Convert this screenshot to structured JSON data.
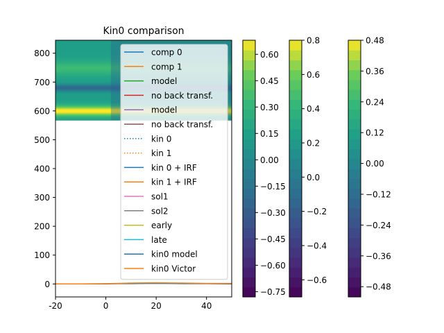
{
  "chart_data": [
    {
      "type": "heatmap+line",
      "title": "Kin0 comparison",
      "xlabel": "",
      "ylabel": "",
      "xlim": [
        -20,
        50
      ],
      "ylim": [
        -45,
        845
      ],
      "xticks": [
        -20,
        0,
        20,
        40
      ],
      "yticks": [
        0,
        100,
        200,
        300,
        400,
        500,
        600,
        700,
        800
      ],
      "heatmap": {
        "x_range": [
          -20,
          50
        ],
        "y_range": [
          568,
          845
        ],
        "colormap": "viridis",
        "bands": [
          {
            "y": 680,
            "width": 12,
            "value": -0.35
          },
          {
            "y": 600,
            "width": 18,
            "value": 0.55
          },
          {
            "y": 748,
            "width": 25,
            "value": 0.2
          }
        ]
      },
      "legend": {
        "location": "upper right",
        "entries": [
          {
            "label": "comp 0",
            "color": "#1f77b4",
            "style": "solid"
          },
          {
            "label": "comp 1",
            "color": "#ff7f0e",
            "style": "solid"
          },
          {
            "label": "model",
            "color": "#2ca02c",
            "style": "solid"
          },
          {
            "label": "no back transf.",
            "color": "#d62728",
            "style": "solid"
          },
          {
            "label": "model",
            "color": "#9467bd",
            "style": "solid"
          },
          {
            "label": "no back transf.",
            "color": "#8c564b",
            "style": "solid"
          },
          {
            "label": "kin 0",
            "color": "#1f77b4",
            "style": "dotted"
          },
          {
            "label": "kin 1",
            "color": "#ff7f0e",
            "style": "dotted"
          },
          {
            "label": "kin 0 + IRF",
            "color": "#1f77b4",
            "style": "solid"
          },
          {
            "label": "kin 1 + IRF",
            "color": "#ff7f0e",
            "style": "solid"
          },
          {
            "label": "sol1",
            "color": "#e377c2",
            "style": "solid"
          },
          {
            "label": "sol2",
            "color": "#7f7f7f",
            "style": "solid"
          },
          {
            "label": "early",
            "color": "#bcbd22",
            "style": "solid"
          },
          {
            "label": "late",
            "color": "#17becf",
            "style": "solid"
          },
          {
            "label": "kin0 model",
            "color": "#1f77b4",
            "style": "solid"
          },
          {
            "label": "kin0 Victor",
            "color": "#ff7f0e",
            "style": "solid"
          }
        ]
      },
      "series": [
        {
          "color": "#1f77b4",
          "x": [
            -20,
            -10,
            0,
            5,
            10,
            20,
            30,
            40,
            50
          ],
          "y": [
            0,
            0,
            0,
            1,
            1,
            2,
            1,
            1,
            0
          ]
        },
        {
          "color": "#ff7f0e",
          "x": [
            -20,
            -10,
            0,
            5,
            10,
            20,
            30,
            40,
            50
          ],
          "y": [
            0,
            0,
            1,
            2,
            3,
            4,
            3,
            2,
            2
          ]
        }
      ]
    },
    {
      "type": "colorbar",
      "colormap": "viridis",
      "range": [
        -0.78,
        0.68
      ],
      "ticks": [
        "0.60",
        "0.45",
        "0.30",
        "0.15",
        "0.00",
        "−0.15",
        "−0.30",
        "−0.45",
        "−0.60",
        "−0.75"
      ],
      "tick_values": [
        0.6,
        0.45,
        0.3,
        0.15,
        0.0,
        -0.15,
        -0.3,
        -0.45,
        -0.6,
        -0.75
      ]
    },
    {
      "type": "colorbar",
      "colormap": "viridis",
      "range": [
        -0.7,
        0.8
      ],
      "ticks": [
        "0.8",
        "0.6",
        "0.4",
        "0.2",
        "0.0",
        "−0.2",
        "−0.4",
        "−0.6"
      ],
      "tick_values": [
        0.8,
        0.6,
        0.4,
        0.2,
        0.0,
        -0.2,
        -0.4,
        -0.6
      ]
    },
    {
      "type": "colorbar",
      "colormap": "viridis",
      "range": [
        -0.52,
        0.48
      ],
      "ticks": [
        "0.48",
        "0.36",
        "0.24",
        "0.12",
        "0.00",
        "−0.12",
        "−0.24",
        "−0.36",
        "−0.48"
      ],
      "tick_values": [
        0.48,
        0.36,
        0.24,
        0.12,
        0.0,
        -0.12,
        -0.24,
        -0.36,
        -0.48
      ]
    }
  ]
}
